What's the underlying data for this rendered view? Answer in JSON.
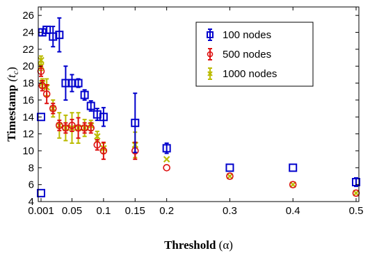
{
  "chart_data": {
    "type": "scatter",
    "xlabel": "Threshold",
    "xlabel_symbol": "(α)",
    "ylabel": "Timestamp",
    "ylabel_symbol": "(t",
    "ylabel_subscript": "c",
    "ylabel_close": ")",
    "xlim": [
      0.001,
      0.5
    ],
    "ylim": [
      4,
      27
    ],
    "xticks": [
      0.001,
      0.05,
      0.1,
      0.15,
      0.2,
      0.3,
      0.4,
      0.5
    ],
    "xtick_labels": [
      "0.001",
      "0.05",
      "0.1",
      "0.15",
      "0.2",
      "0.3",
      "0.4",
      "0.5"
    ],
    "yticks": [
      4,
      6,
      8,
      10,
      12,
      14,
      16,
      18,
      20,
      22,
      24,
      26
    ],
    "ytick_labels": [
      "4",
      "6",
      "8",
      "10",
      "12",
      "14",
      "16",
      "18",
      "20",
      "22",
      "24",
      "26"
    ],
    "grid": false,
    "legend_position": "top-right",
    "series": [
      {
        "name": "100 nodes",
        "marker": "square",
        "color": "#0000cc",
        "points": [
          {
            "x": 0.001,
            "y": 5,
            "err": 0
          },
          {
            "x": 0.001,
            "y": 14,
            "err": 0
          },
          {
            "x": 0.003,
            "y": 24,
            "err": 0.4
          },
          {
            "x": 0.01,
            "y": 24.3,
            "err": 0.4
          },
          {
            "x": 0.02,
            "y": 23.5,
            "err": 1.2
          },
          {
            "x": 0.03,
            "y": 23.7,
            "err": 2.0
          },
          {
            "x": 0.04,
            "y": 18,
            "err": 2.0
          },
          {
            "x": 0.05,
            "y": 18,
            "err": 1.0
          },
          {
            "x": 0.06,
            "y": 18,
            "err": 0.5
          },
          {
            "x": 0.07,
            "y": 16.6,
            "err": 0.6
          },
          {
            "x": 0.08,
            "y": 15.3,
            "err": 0.6
          },
          {
            "x": 0.09,
            "y": 14.3,
            "err": 0.7
          },
          {
            "x": 0.1,
            "y": 14,
            "err": 1.1
          },
          {
            "x": 0.15,
            "y": 13.3,
            "err": 3.5
          },
          {
            "x": 0.2,
            "y": 10.3,
            "err": 0.6
          },
          {
            "x": 0.3,
            "y": 8,
            "err": 0
          },
          {
            "x": 0.4,
            "y": 8,
            "err": 0
          },
          {
            "x": 0.5,
            "y": 6.3,
            "err": 0.5
          }
        ]
      },
      {
        "name": "500 nodes",
        "marker": "circle",
        "color": "#dd1111",
        "points": [
          {
            "x": 0.001,
            "y": 19.4,
            "err": 0.6
          },
          {
            "x": 0.003,
            "y": 17.7,
            "err": 0.6
          },
          {
            "x": 0.01,
            "y": 16.7,
            "err": 1.1
          },
          {
            "x": 0.02,
            "y": 15,
            "err": 0.6
          },
          {
            "x": 0.03,
            "y": 13,
            "err": 0.6
          },
          {
            "x": 0.04,
            "y": 12.7,
            "err": 0.6
          },
          {
            "x": 0.05,
            "y": 13,
            "err": 0.7
          },
          {
            "x": 0.06,
            "y": 12.7,
            "err": 1.2
          },
          {
            "x": 0.07,
            "y": 12.7,
            "err": 0.6
          },
          {
            "x": 0.08,
            "y": 12.7,
            "err": 0.6
          },
          {
            "x": 0.09,
            "y": 10.7,
            "err": 0.6
          },
          {
            "x": 0.1,
            "y": 10,
            "err": 1.0
          },
          {
            "x": 0.15,
            "y": 10,
            "err": 1.0
          },
          {
            "x": 0.2,
            "y": 8,
            "err": 0
          },
          {
            "x": 0.3,
            "y": 7,
            "err": 0
          },
          {
            "x": 0.4,
            "y": 6,
            "err": 0
          },
          {
            "x": 0.5,
            "y": 5,
            "err": 0
          }
        ]
      },
      {
        "name": "1000 nodes",
        "marker": "x",
        "color": "#bbbb00",
        "points": [
          {
            "x": 0.001,
            "y": 20.7,
            "err": 0.5
          },
          {
            "x": 0.001,
            "y": 20,
            "err": 0.5
          },
          {
            "x": 0.003,
            "y": 18,
            "err": 0.5
          },
          {
            "x": 0.01,
            "y": 17.5,
            "err": 1.0
          },
          {
            "x": 0.02,
            "y": 15,
            "err": 1.0
          },
          {
            "x": 0.03,
            "y": 13,
            "err": 1.5
          },
          {
            "x": 0.04,
            "y": 12.7,
            "err": 1.5
          },
          {
            "x": 0.05,
            "y": 12.7,
            "err": 1.8
          },
          {
            "x": 0.06,
            "y": 12.7,
            "err": 1.8
          },
          {
            "x": 0.07,
            "y": 12.7,
            "err": 1.0
          },
          {
            "x": 0.08,
            "y": 13,
            "err": 0.6
          },
          {
            "x": 0.09,
            "y": 11.7,
            "err": 0.6
          },
          {
            "x": 0.1,
            "y": 10.3,
            "err": 0.6
          },
          {
            "x": 0.15,
            "y": 10.7,
            "err": 1.5
          },
          {
            "x": 0.2,
            "y": 9,
            "err": 0
          },
          {
            "x": 0.3,
            "y": 7,
            "err": 0
          },
          {
            "x": 0.4,
            "y": 6,
            "err": 0
          },
          {
            "x": 0.5,
            "y": 5,
            "err": 0
          }
        ]
      }
    ]
  }
}
